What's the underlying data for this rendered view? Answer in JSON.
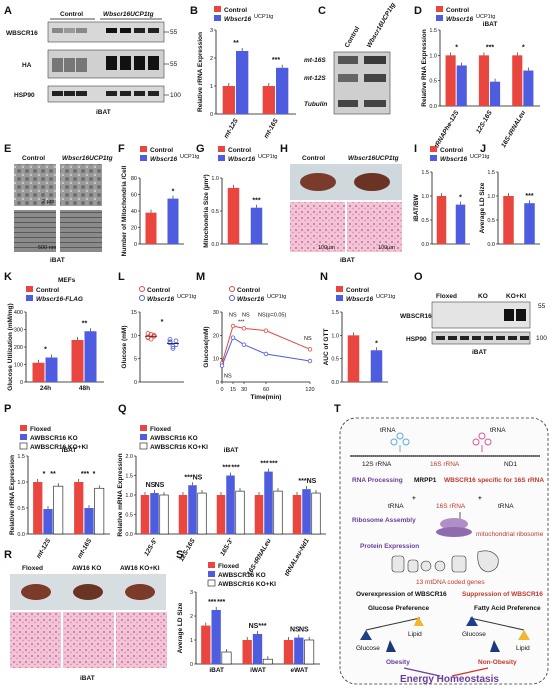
{
  "colors": {
    "control": "#e8463f",
    "ko": "#4e5de0",
    "ki": "#ffffff",
    "purple": "#6a3d9a",
    "red": "#d0312d"
  },
  "labels": {
    "A": "A",
    "B": "B",
    "C": "C",
    "D": "D",
    "E": "E",
    "F": "F",
    "G": "G",
    "H": "H",
    "I": "I",
    "J": "J",
    "K": "K",
    "L": "L",
    "M": "M",
    "N": "N",
    "O": "O",
    "P": "P",
    "Q": "Q",
    "R": "R",
    "S": "S",
    "T": "T"
  },
  "legend": {
    "control": "Control",
    "tg": "Wbscr16",
    "tg_sup": "UCP1tg",
    "flag": "Wbscr16-FLAG",
    "floxed": "Floxed",
    "ko": "AWBSCR16 KO",
    "koki": "AWBSCR16 KO+KI",
    "aw_ko": "AW16 KO",
    "aw_koki": "AW16 KO+KI"
  },
  "panelA": {
    "lanes": {
      "control": "Control",
      "tg": "Wbscr16UCP1tg"
    },
    "rows": [
      "WBSCR16",
      "HA",
      "HSP90"
    ],
    "mw": [
      "55",
      "55",
      "100"
    ],
    "tissue": "iBAT"
  },
  "panelC": {
    "cols": [
      "Control",
      "Wbscr16UCP1tg"
    ],
    "rows": [
      "mt-16S",
      "mt-12S",
      "Tubulin"
    ]
  },
  "panelE": {
    "cols": [
      "Control",
      "Wbscr16UCP1tg"
    ],
    "tissue": "iBAT",
    "scale": [
      "2 µm",
      "500 nm"
    ]
  },
  "panelH": {
    "cols": [
      "Control",
      "Wbscr16UCP1tg"
    ],
    "tissue": "iBAT",
    "scale": "100µm"
  },
  "panelO": {
    "cols": [
      "Floxed",
      "KO",
      "KO+KI"
    ],
    "rows": [
      "WBSCR16",
      "HSP90"
    ],
    "mw": [
      "55",
      "100"
    ],
    "tissue": "iBAT"
  },
  "panelR": {
    "cols": [
      "Floxed",
      "AW16 KO",
      "AW16 KO+KI"
    ],
    "tissue": "iBAT"
  },
  "panelK": {
    "title": "MEFs"
  },
  "panelT": {
    "trna1": "tRNA",
    "trna2": "tRNA",
    "r12": "12S rRNA",
    "r16": "16S rRNA",
    "nd1": "ND1",
    "processing": "RNA Processing",
    "mrpp1": "MRPP1",
    "specific": "WBSCR16 specific for 16S rRNA",
    "trna_l": "tRNA",
    "r16b": "16S rRNA",
    "trna_r": "tRNA",
    "assembly": "Ribosome Assembly",
    "mitoribo": "mitochondrial ribosome",
    "protein": "Protein Expression",
    "coded": "13 mtDNA coded genes",
    "over": "Overexpression of WBSCR16",
    "supp": "Suppression of WBSCR16",
    "gpref": "Glucose Preference",
    "fpref": "Fatty Acid Preference",
    "glucose1": "Glucose",
    "lipid1": "Lipid",
    "glucose2": "Glucose",
    "lipid2": "Lipid",
    "obesity": "Obesity",
    "nonob": "Non-Obesity",
    "energy": "Energy Homeostasis"
  },
  "chart_data": [
    {
      "panel": "B",
      "type": "bar",
      "ylabel": "Relative rRNA Expression",
      "ylim": [
        0,
        3
      ],
      "yticks": [
        "0",
        "1",
        "2",
        "3"
      ],
      "categories": [
        "mt-12S",
        "mt-16S"
      ],
      "series": [
        {
          "name": "Control",
          "values": [
            1.0,
            1.0
          ]
        },
        {
          "name": "Wbscr16UCP1tg",
          "values": [
            2.25,
            1.65
          ]
        }
      ],
      "sig": [
        "**",
        "***"
      ]
    },
    {
      "panel": "D",
      "type": "bar",
      "title": "iBAT",
      "ylabel": "Relative RNA Expression",
      "ylim": [
        0,
        1.5
      ],
      "yticks": [
        "0.0",
        "0.5",
        "1.0",
        "1.5"
      ],
      "categories": [
        "tRNAPhe-12S",
        "12S-16S",
        "16S-tRNALeu"
      ],
      "series": [
        {
          "name": "Control",
          "values": [
            1.0,
            1.0,
            1.0
          ]
        },
        {
          "name": "Wbscr16UCP1tg",
          "values": [
            0.8,
            0.48,
            0.7
          ]
        }
      ],
      "sig": [
        "*",
        "***",
        "*"
      ]
    },
    {
      "panel": "F",
      "type": "bar",
      "ylabel": "Number of Mitochondria /Cell",
      "ylim": [
        0,
        80
      ],
      "yticks": [
        "0",
        "20",
        "40",
        "60",
        "80"
      ],
      "categories": [
        "Control",
        "Wbscr16UCP1tg"
      ],
      "values": [
        38,
        55
      ],
      "sig": [
        "",
        "*"
      ]
    },
    {
      "panel": "G",
      "type": "bar",
      "ylabel": "Mitochondria Size (µm²)",
      "ylim": [
        0,
        1.0
      ],
      "yticks": [
        "0.0",
        "0.5",
        "1.0"
      ],
      "categories": [
        "Control",
        "Wbscr16UCP1tg"
      ],
      "values": [
        0.85,
        0.55
      ],
      "sig": [
        "",
        "***"
      ]
    },
    {
      "panel": "I",
      "type": "bar",
      "ylabel": "iBAT/BW",
      "ylim": [
        0,
        1.5
      ],
      "yticks": [
        "0.0",
        "0.5",
        "1.0",
        "1.5"
      ],
      "categories": [
        "Control",
        "Wbscr16UCP1tg"
      ],
      "values": [
        1.0,
        0.82
      ],
      "sig": [
        "",
        "*"
      ]
    },
    {
      "panel": "J",
      "type": "bar",
      "ylabel": "Average LD Size",
      "ylim": [
        0,
        1.5
      ],
      "yticks": [
        "0.0",
        "0.5",
        "1.0",
        "1.5"
      ],
      "categories": [
        "Control",
        "Wbscr16UCP1tg"
      ],
      "values": [
        1.0,
        0.85
      ],
      "sig": [
        "",
        "***"
      ]
    },
    {
      "panel": "K",
      "type": "bar",
      "title": "MEFs",
      "ylabel": "Glucose Utilization (mM/mg)",
      "ylim": [
        0,
        400
      ],
      "yticks": [
        "0",
        "100",
        "200",
        "300",
        "400"
      ],
      "categories": [
        "24h",
        "48h"
      ],
      "series": [
        {
          "name": "Control",
          "values": [
            110,
            240
          ]
        },
        {
          "name": "Wbscr16-FLAG",
          "values": [
            140,
            290
          ]
        }
      ],
      "sig": [
        "*",
        "**"
      ]
    },
    {
      "panel": "L",
      "type": "scatter",
      "ylabel": "Glucose (mM)",
      "ylim": [
        0,
        15
      ],
      "yticks": [
        "0",
        "5",
        "10",
        "15"
      ],
      "categories": [
        "Control",
        "Wbscr16UCP1tg"
      ],
      "series": [
        {
          "name": "Control",
          "values": [
            9.6,
            10.2,
            9.8,
            10.4,
            9.2,
            10.0,
            9.5
          ]
        },
        {
          "name": "Wbscr16UCP1tg",
          "values": [
            8.4,
            7.6,
            8.8,
            9.1,
            7.2,
            8.0,
            8.6
          ]
        }
      ],
      "sig": "*"
    },
    {
      "panel": "M",
      "type": "line",
      "xlabel": "Time(min)",
      "ylabel": "Glucose(mM)",
      "ylim": [
        0,
        30
      ],
      "yticks": [
        "0",
        "10",
        "20",
        "30"
      ],
      "x": [
        0,
        15,
        30,
        60,
        120
      ],
      "xticks": [
        "0",
        "15",
        "30",
        "60",
        "120"
      ],
      "series": [
        {
          "name": "Control",
          "values": [
            8,
            24,
            23,
            22,
            14
          ]
        },
        {
          "name": "Wbscr16UCP1tg",
          "values": [
            7,
            19,
            16,
            12,
            9
          ]
        }
      ],
      "annotations": [
        "NS",
        "NS",
        "NS",
        "***",
        "NS(p=0.05)",
        "NS"
      ]
    },
    {
      "panel": "N",
      "type": "bar",
      "ylabel": "AUC of GTT",
      "ylim": [
        0,
        1.5
      ],
      "yticks": [
        "0.0",
        "0.5",
        "1.0",
        "1.5"
      ],
      "categories": [
        "Control",
        "Wbscr16UCP1tg"
      ],
      "values": [
        1.0,
        0.68
      ],
      "sig": [
        "",
        "*"
      ]
    },
    {
      "panel": "P",
      "type": "bar",
      "title": "iBAT",
      "ylabel": "Relative rRNA Expression",
      "ylim": [
        0,
        1.5
      ],
      "yticks": [
        "0.0",
        "0.5",
        "1.0",
        "1.5"
      ],
      "categories": [
        "mt-12S",
        "mt-16S"
      ],
      "series": [
        {
          "name": "Floxed",
          "values": [
            1.0,
            1.0
          ]
        },
        {
          "name": "AWBSCR16 KO",
          "values": [
            0.48,
            0.5
          ]
        },
        {
          "name": "AWBSCR16 KO+KI",
          "values": [
            0.92,
            0.88
          ]
        }
      ],
      "sig": [
        "*",
        "**",
        "***",
        "*"
      ]
    },
    {
      "panel": "Q",
      "type": "bar",
      "title": "iBAT",
      "ylabel": "Relative mRNA Expression",
      "ylim": [
        0,
        2.0
      ],
      "yticks": [
        "0.0",
        "0.5",
        "1.0",
        "1.5",
        "2.0"
      ],
      "categories": [
        "12S-5'",
        "12S-16S",
        "16S-3'",
        "16S-tRNALeu",
        "tRNALeu-Nd1"
      ],
      "series": [
        {
          "name": "Floxed",
          "values": [
            1.0,
            1.0,
            1.0,
            1.0,
            1.0
          ]
        },
        {
          "name": "AWBSCR16 KO",
          "values": [
            1.05,
            1.25,
            1.5,
            1.6,
            1.15
          ]
        },
        {
          "name": "AWBSCR16 KO+KI",
          "values": [
            1.0,
            1.05,
            1.1,
            1.1,
            1.05
          ]
        }
      ],
      "sig": [
        "NS",
        "NS",
        "***",
        "NS",
        "***",
        "***",
        "***",
        "***",
        "***",
        "NS"
      ]
    },
    {
      "panel": "S",
      "type": "bar",
      "ylabel": "Average LD Size",
      "ylim": [
        0,
        3
      ],
      "yticks": [
        "0",
        "1",
        "2",
        "3"
      ],
      "categories": [
        "iBAT",
        "iWAT",
        "eWAT"
      ],
      "series": [
        {
          "name": "Floxed",
          "values": [
            1.6,
            1.0,
            1.0
          ]
        },
        {
          "name": "AWBSCR16 KO",
          "values": [
            2.25,
            1.25,
            1.1
          ]
        },
        {
          "name": "AWBSCR16 KO+KI",
          "values": [
            0.5,
            0.2,
            1.0
          ]
        }
      ],
      "sig": [
        "***",
        "***",
        "NS",
        "***",
        "NS",
        "NS"
      ]
    }
  ]
}
